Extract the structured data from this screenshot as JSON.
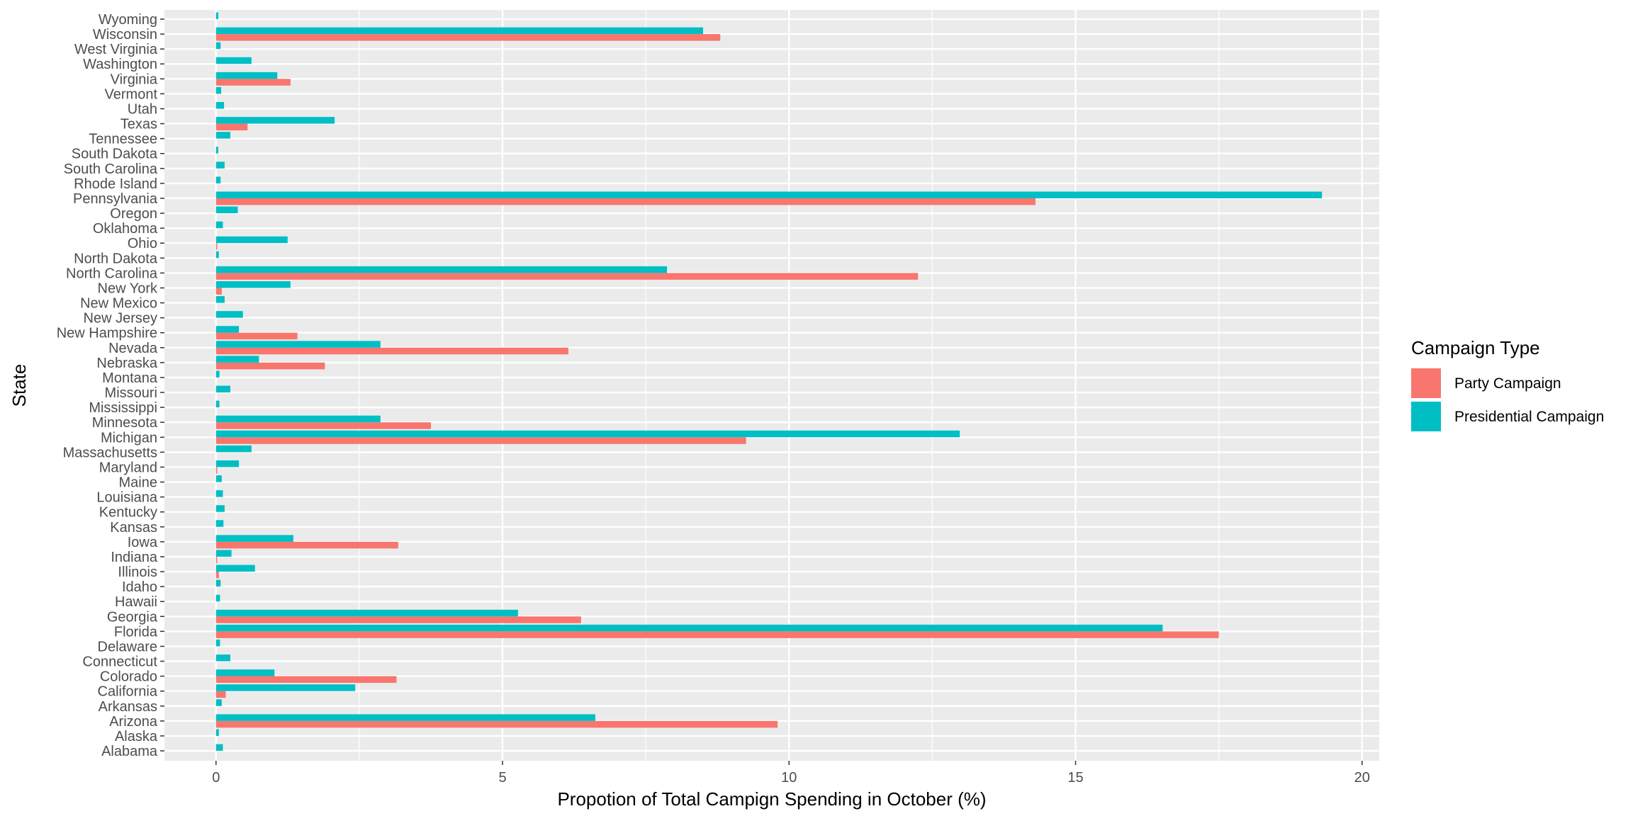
{
  "chart_data": {
    "type": "bar",
    "orientation": "horizontal",
    "xlabel": "Propotion of Total Campign Spending in October (%)",
    "ylabel": "State",
    "xlim": [
      -0.9,
      20.3
    ],
    "xticks": [
      0,
      5,
      10,
      15,
      20
    ],
    "grid": true,
    "legend": {
      "title": "Campaign Type",
      "position": "right"
    },
    "categories": [
      "Alabama",
      "Alaska",
      "Arizona",
      "Arkansas",
      "California",
      "Colorado",
      "Connecticut",
      "Delaware",
      "Florida",
      "Georgia",
      "Hawaii",
      "Idaho",
      "Illinois",
      "Indiana",
      "Iowa",
      "Kansas",
      "Kentucky",
      "Louisiana",
      "Maine",
      "Maryland",
      "Massachusetts",
      "Michigan",
      "Minnesota",
      "Mississippi",
      "Missouri",
      "Montana",
      "Nebraska",
      "Nevada",
      "New Hampshire",
      "New Jersey",
      "New Mexico",
      "New York",
      "North Carolina",
      "North Dakota",
      "Ohio",
      "Oklahoma",
      "Oregon",
      "Pennsylvania",
      "Rhode Island",
      "South Carolina",
      "South Dakota",
      "Tennessee",
      "Texas",
      "Utah",
      "Vermont",
      "Virginia",
      "Washington",
      "West Virginia",
      "Wisconsin",
      "Wyoming"
    ],
    "series": [
      {
        "name": "Party Campaign",
        "color": "#F8766D",
        "values": [
          0,
          0,
          9.8,
          0,
          0.17,
          3.15,
          0,
          0,
          17.5,
          6.37,
          0,
          0,
          0.05,
          0.02,
          3.18,
          0,
          0,
          0,
          0,
          0.02,
          0,
          9.25,
          3.75,
          0,
          0,
          0,
          1.9,
          6.15,
          1.42,
          0,
          0,
          0.1,
          12.25,
          0,
          0.02,
          0,
          0,
          14.3,
          0,
          0,
          0,
          0,
          0.55,
          0,
          0,
          1.3,
          0,
          0,
          8.8,
          0
        ]
      },
      {
        "name": "Presidential Campaign",
        "color": "#00BFC4",
        "values": [
          0.12,
          0.05,
          6.62,
          0.1,
          2.43,
          1.02,
          0.25,
          0.07,
          16.52,
          5.27,
          0.07,
          0.08,
          0.68,
          0.27,
          1.35,
          0.13,
          0.15,
          0.12,
          0.1,
          0.4,
          0.62,
          12.98,
          2.87,
          0.06,
          0.25,
          0.06,
          0.75,
          2.87,
          0.4,
          0.47,
          0.15,
          1.3,
          7.87,
          0.05,
          1.25,
          0.12,
          0.38,
          19.3,
          0.08,
          0.15,
          0.04,
          0.25,
          2.07,
          0.14,
          0.09,
          1.07,
          0.62,
          0.08,
          8.5,
          0.04
        ]
      }
    ]
  }
}
